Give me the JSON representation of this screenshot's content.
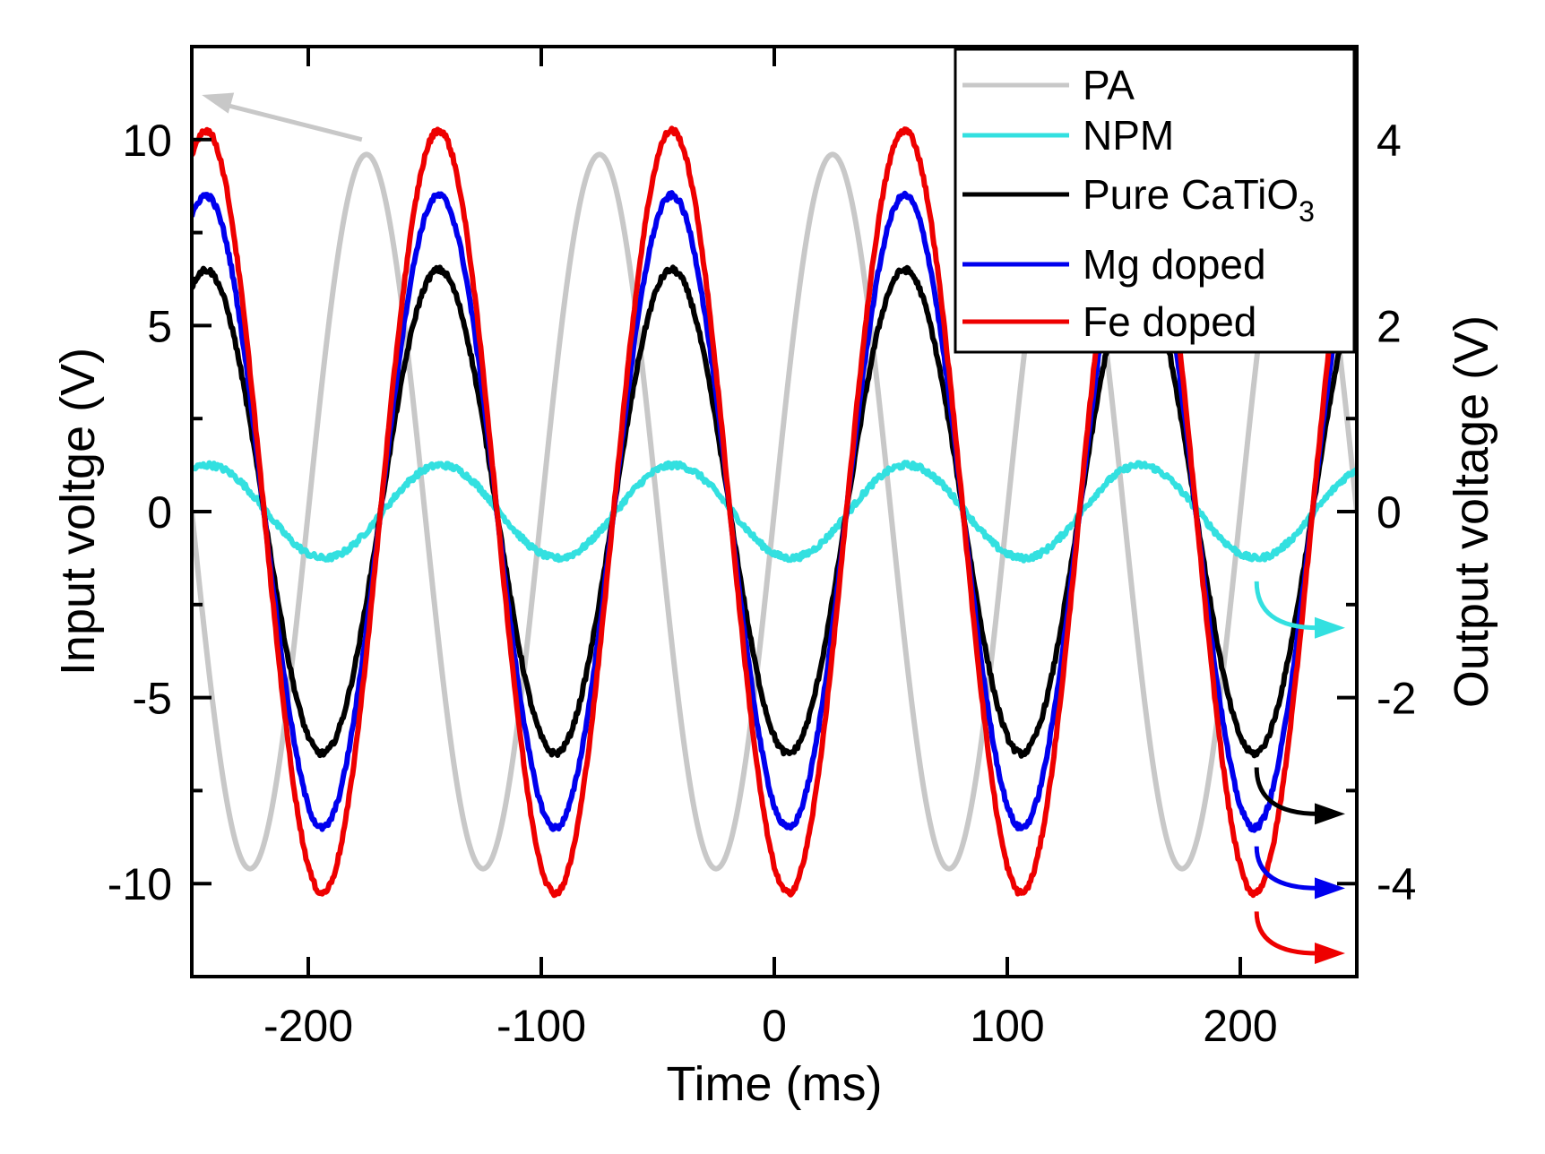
{
  "chart_data": {
    "type": "line",
    "title": "",
    "xlabel": "Time (ms)",
    "ylabel_left": "Input voltge (V)",
    "ylabel_right": "Output voltage (V)",
    "xlim": [
      -250,
      250
    ],
    "ylim_left": [
      -12.5,
      12.5
    ],
    "ylim_right": [
      -5,
      5
    ],
    "xticks": [
      -200,
      -100,
      0,
      100,
      200
    ],
    "xtick_labels": [
      "-200",
      "-100",
      "0",
      "100",
      "200"
    ],
    "yticks_left": [
      -10,
      -5,
      0,
      5,
      10
    ],
    "ytick_labels_left": [
      "-10",
      "-5",
      "0",
      "5",
      "10"
    ],
    "yticks_right": [
      -4,
      -2,
      0,
      2,
      4
    ],
    "ytick_labels_right": [
      "-4",
      "-2",
      "0",
      "2",
      "4"
    ],
    "period_ms": 100,
    "legend_position": "top-right",
    "series": [
      {
        "name": "PA",
        "axis": "left",
        "color": "#c8c8c8",
        "amplitude": 9.6,
        "peak_time_ms": 25,
        "noise": 0.0
      },
      {
        "name": "NPM",
        "axis": "right",
        "color": "#33e0e0",
        "amplitude": 0.5,
        "peak_time_ms": -43,
        "noise": 0.03
      },
      {
        "name": "Pure CaTiO3",
        "name_main": "Pure CaTiO",
        "name_sub": "3",
        "axis": "right",
        "color": "#000000",
        "amplitude": 2.6,
        "peak_time_ms": 56,
        "noise": 0.03
      },
      {
        "name": "Mg doped",
        "axis": "right",
        "color": "#0000ee",
        "amplitude": 3.4,
        "peak_time_ms": 56,
        "noise": 0.03
      },
      {
        "name": "Fe doped",
        "axis": "right",
        "color": "#ee0000",
        "amplitude": 4.1,
        "peak_time_ms": 56,
        "noise": 0.03
      }
    ],
    "annotations": [
      {
        "type": "arrow",
        "series": "PA",
        "points": [
          [
            -177,
            11.2
          ],
          [
            -248,
            11.2
          ]
        ],
        "axis": "left",
        "meaning": "PA corresponds to left axis"
      },
      {
        "type": "arrow",
        "series": "NPM",
        "points": [
          [
            207,
            -0.75
          ],
          [
            245,
            -1.25
          ]
        ],
        "axis": "right",
        "meaning": "NPM corresponds to right axis"
      },
      {
        "type": "arrow",
        "series": "Pure CaTiO3",
        "points": [
          [
            207,
            -2.75
          ],
          [
            245,
            -3.25
          ]
        ],
        "axis": "right",
        "meaning": "Pure CaTiO3 corresponds to right axis"
      },
      {
        "type": "arrow",
        "series": "Mg doped",
        "points": [
          [
            207,
            -3.6
          ],
          [
            245,
            -4.05
          ]
        ],
        "axis": "right",
        "meaning": "Mg doped corresponds to right axis"
      },
      {
        "type": "arrow",
        "series": "Fe doped",
        "points": [
          [
            207,
            -4.3
          ],
          [
            245,
            -4.75
          ]
        ],
        "axis": "right",
        "meaning": "Fe doped corresponds to right axis"
      }
    ]
  }
}
